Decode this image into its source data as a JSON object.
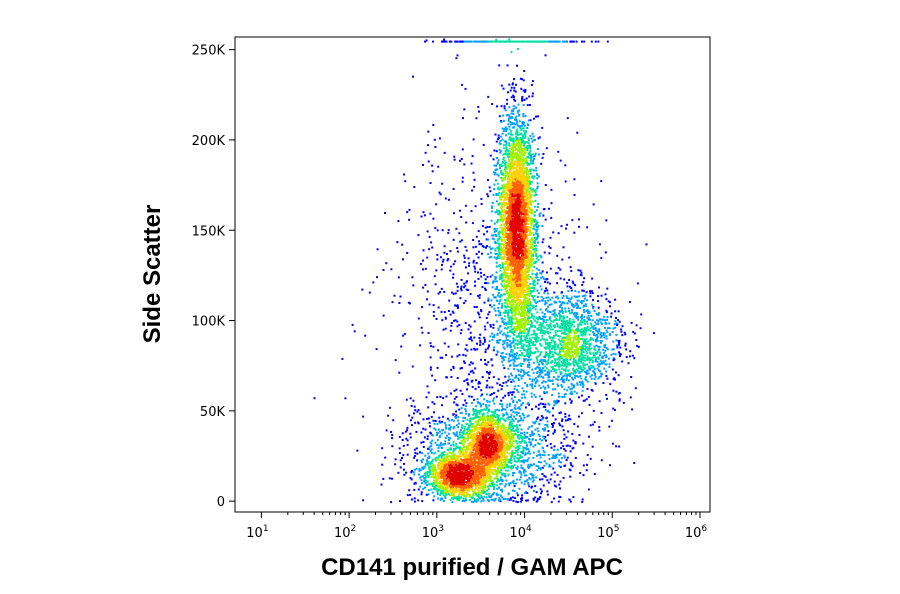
{
  "chart_data": {
    "type": "scatter",
    "subtype": "flow-cytometry-density-dot-plot",
    "title": "",
    "xlabel": "CD141 purified / GAM APC",
    "ylabel": "Side Scatter",
    "x_scale": "log",
    "xlim": [
      5,
      1300000
    ],
    "ylim": [
      -6000,
      257000
    ],
    "x_ticks": [
      {
        "value": 10,
        "base": "10",
        "exp": "1"
      },
      {
        "value": 100,
        "base": "10",
        "exp": "2"
      },
      {
        "value": 1000,
        "base": "10",
        "exp": "3"
      },
      {
        "value": 10000,
        "base": "10",
        "exp": "4"
      },
      {
        "value": 100000,
        "base": "10",
        "exp": "5"
      },
      {
        "value": 1000000,
        "base": "10",
        "exp": "6"
      }
    ],
    "y_ticks": [
      {
        "value": 0,
        "label": "0"
      },
      {
        "value": 50000,
        "label": "50K"
      },
      {
        "value": 100000,
        "label": "100K"
      },
      {
        "value": 150000,
        "label": "150K"
      },
      {
        "value": 200000,
        "label": "200K"
      },
      {
        "value": 250000,
        "label": "250K"
      }
    ],
    "populations": [
      {
        "x_center": 8000,
        "y_center": 150000,
        "log_sigma_x": 0.1,
        "sigma_y": 32000,
        "weight": 0.36
      },
      {
        "x_center": 30000,
        "y_center": 88000,
        "log_sigma_x": 0.3,
        "sigma_y": 15000,
        "weight": 0.14
      },
      {
        "x_center": 1800,
        "y_center": 15000,
        "log_sigma_x": 0.2,
        "sigma_y": 6000,
        "weight": 0.14
      },
      {
        "x_center": 3800,
        "y_center": 33000,
        "log_sigma_x": 0.15,
        "sigma_y": 9000,
        "weight": 0.12
      },
      {
        "x_center": 4000,
        "y_center": 28000,
        "log_sigma_x": 0.5,
        "sigma_y": 14000,
        "weight": 0.1
      },
      {
        "x_center": 4000,
        "y_center": 100000,
        "log_sigma_x": 0.55,
        "sigma_y": 55000,
        "weight": 0.1
      },
      {
        "x_center": 8000,
        "y_center": 255000,
        "log_sigma_x": 0.35,
        "sigma_y": 0,
        "weight": 0.04
      }
    ],
    "colormap": [
      "#0000ff",
      "#00a0ff",
      "#00e0a0",
      "#a0f000",
      "#ffd000",
      "#ff6000",
      "#e00000"
    ],
    "grid": false,
    "legend": "none"
  }
}
